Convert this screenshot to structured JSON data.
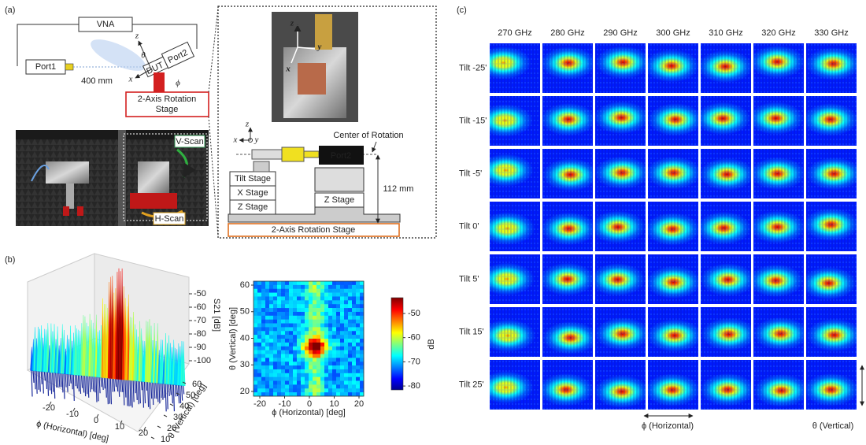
{
  "panel_a": {
    "label": "(a)",
    "schematic": {
      "vna": "VNA",
      "port1": "Port1",
      "distance": "400 mm",
      "dut": "DUT",
      "port2": "Port2",
      "stage": [
        "2-Axis Rotation",
        "Stage"
      ],
      "axes": {
        "z": "z",
        "theta": "θ",
        "x": "x",
        "phi": "ϕ"
      }
    },
    "photo": {
      "v_scan": "V-Scan",
      "h_scan": "H-Scan"
    },
    "inset": {
      "photo_axes": {
        "z": "z",
        "y": "y",
        "x": "x"
      },
      "axes": {
        "z": "z",
        "x": "x",
        "y": "y"
      },
      "center": "Center of Rotation",
      "port2": "Port2",
      "tilt_stage": "Tilt Stage",
      "x_stage": "X Stage",
      "z_stage_left": "Z Stage",
      "z_stage_right": "Z Stage",
      "height": "112 mm",
      "rotation_stage": "2-Axis Rotation Stage"
    }
  },
  "panel_b": {
    "label": "(b)",
    "surface": {
      "z_label": "S21 [dB]",
      "z_ticks": [
        -50,
        -60,
        -70,
        -80,
        -90,
        -100
      ],
      "x_label": "ϕ (Horizontal) [deg]",
      "x_ticks": [
        -20,
        -10,
        0,
        10,
        20
      ],
      "y_label": "θ (Vertical) [deg]",
      "y_ticks": [
        10,
        20,
        30,
        40,
        50,
        60
      ]
    },
    "map": {
      "x_label": "ϕ (Horizontal) [deg]",
      "x_ticks": [
        -20,
        -10,
        0,
        10,
        20
      ],
      "y_label": "θ (Vertical) [deg]",
      "y_ticks": [
        20,
        30,
        40,
        50,
        60
      ],
      "colorbar_label": "dB",
      "colorbar_ticks": [
        -50,
        -60,
        -70,
        -80
      ]
    }
  },
  "panel_c": {
    "label": "(c)",
    "frequencies": [
      "270 GHz",
      "280 GHz",
      "290 GHz",
      "300 GHz",
      "310 GHz",
      "320 GHz",
      "330 GHz"
    ],
    "tilts": [
      "Tilt -25'",
      "Tilt -15'",
      "Tilt -5'",
      "Tilt 0'",
      "Tilt 5'",
      "Tilt 15'",
      "Tilt 25'"
    ],
    "x_label": "ϕ (Horizontal)",
    "y_label": "θ (Vertical)"
  }
}
